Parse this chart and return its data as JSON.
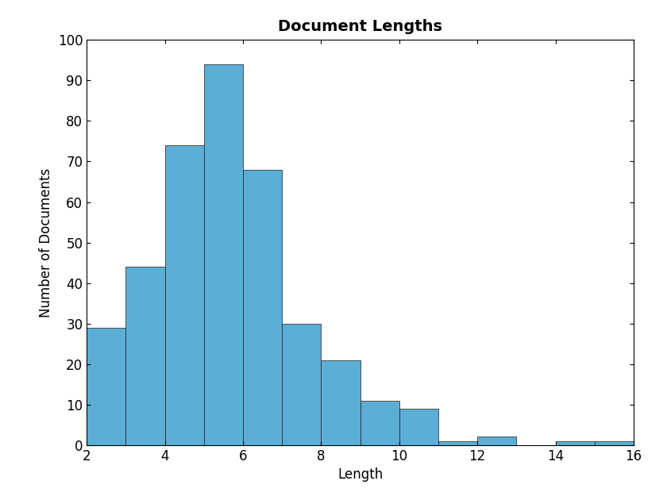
{
  "title": "Document Lengths",
  "xlabel": "Length",
  "ylabel": "Number of Documents",
  "bar_color": "#5bafd6",
  "edge_color": "#1a1a1a",
  "xlim": [
    2,
    16
  ],
  "ylim": [
    0,
    100
  ],
  "xticks": [
    2,
    4,
    6,
    8,
    10,
    12,
    14,
    16
  ],
  "yticks": [
    0,
    10,
    20,
    30,
    40,
    50,
    60,
    70,
    80,
    90,
    100
  ],
  "bin_edges": [
    2,
    3,
    4,
    5,
    6,
    7,
    8,
    9,
    10,
    11,
    12,
    13,
    14,
    15,
    16
  ],
  "counts": [
    29,
    44,
    74,
    94,
    68,
    30,
    21,
    11,
    9,
    1,
    2,
    0,
    1,
    1
  ],
  "title_fontsize": 14,
  "label_fontsize": 12,
  "tick_fontsize": 12,
  "title_fontweight": "bold",
  "linewidth": 0.5
}
